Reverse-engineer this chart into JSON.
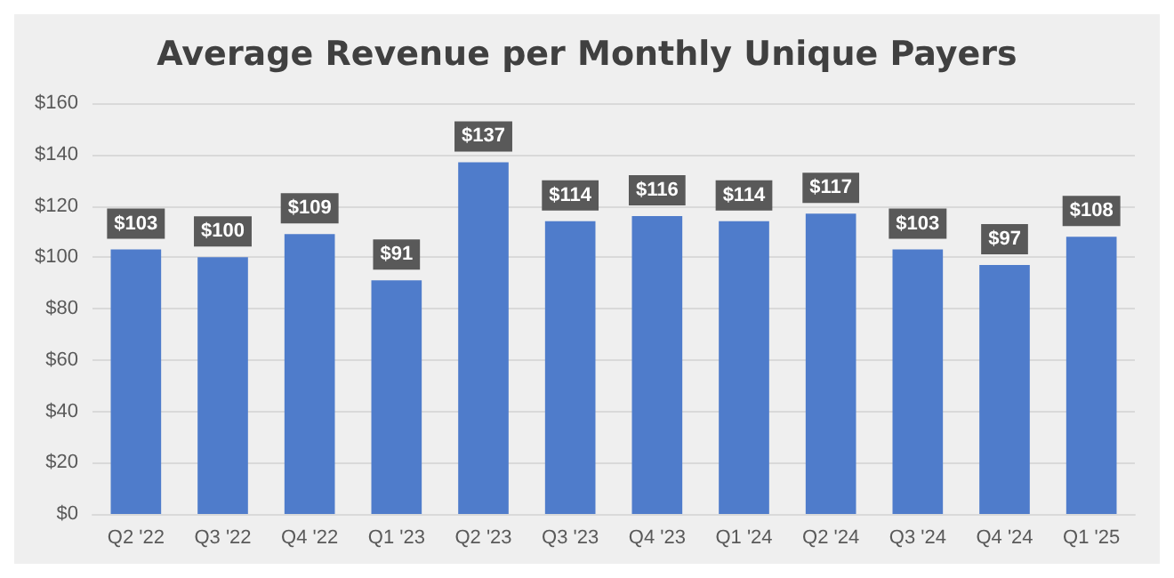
{
  "chart_data": {
    "type": "bar",
    "title": "Average Revenue per Monthly Unique Payers",
    "categories": [
      "Q2 '22",
      "Q3 '22",
      "Q4 '22",
      "Q1 '23",
      "Q2 '23",
      "Q3 '23",
      "Q4 '23",
      "Q1 '24",
      "Q2 '24",
      "Q3 '24",
      "Q4 '24",
      "Q1 '25"
    ],
    "values": [
      103,
      100,
      109,
      91,
      137,
      114,
      116,
      114,
      117,
      103,
      97,
      108
    ],
    "value_labels": [
      "$103",
      "$100",
      "$109",
      "$91",
      "$137",
      "$114",
      "$116",
      "$114",
      "$117",
      "$103",
      "$97",
      "$108"
    ],
    "color": "#4f7ccb",
    "ylim": [
      0,
      160
    ],
    "yticks": [
      {
        "value": 0,
        "label": "$0"
      },
      {
        "value": 20,
        "label": "$20"
      },
      {
        "value": 40,
        "label": "$40"
      },
      {
        "value": 60,
        "label": "$60"
      },
      {
        "value": 80,
        "label": "$80"
      },
      {
        "value": 100,
        "label": "$100"
      },
      {
        "value": 120,
        "label": "$120"
      },
      {
        "value": 140,
        "label": "$140"
      },
      {
        "value": 160,
        "label": "$160"
      }
    ],
    "grid": "y"
  }
}
